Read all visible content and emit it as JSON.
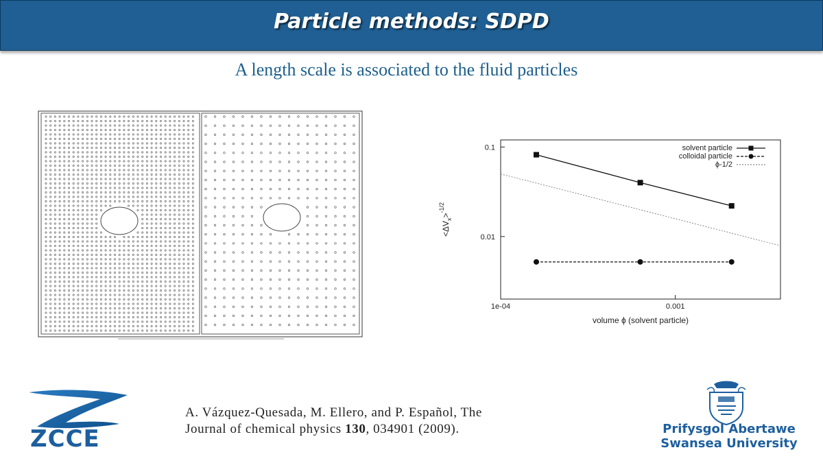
{
  "slide": {
    "title": "Particle methods: SDPD",
    "subtitle": "A length scale is associated to the fluid particles"
  },
  "reference": {
    "line1": "A. Vázquez-Quesada, M. Ellero, and P. Español, The",
    "line2_prefix": "Journal of chemical physics ",
    "line2_volume": "130",
    "line2_suffix": ", 034901 (2009)."
  },
  "logos": {
    "zcce": "ZCCE",
    "university_line1": "Prifysgol Abertawe",
    "university_line2": "Swansea University"
  },
  "colors": {
    "title_bar": "#1f5f93",
    "subtitle": "#1c5f8c",
    "logo_blue": "#1d5f9e"
  },
  "chart_data": {
    "type": "line",
    "title": "",
    "xlabel": "volume ϕ (solvent particle)",
    "ylabel": "<ΔVx>-1/2",
    "x_scale": "log",
    "y_scale": "log",
    "xlim": [
      0.0001,
      0.004
    ],
    "ylim": [
      0.002,
      0.12
    ],
    "x_ticks": [
      {
        "value": 0.0001,
        "label": "1e-04"
      },
      {
        "value": 0.001,
        "label": "0.001"
      }
    ],
    "y_ticks": [
      {
        "value": 0.01,
        "label": "0.01"
      },
      {
        "value": 0.1,
        "label": "0.1"
      }
    ],
    "legend_position": "top-right",
    "grid": false,
    "series": [
      {
        "name": "solvent particle",
        "style": "solid",
        "marker": "square",
        "x": [
          0.00016,
          0.00063,
          0.0021
        ],
        "y": [
          0.082,
          0.04,
          0.022
        ]
      },
      {
        "name": "colloidal particle",
        "style": "dashed",
        "marker": "circle",
        "x": [
          0.00016,
          0.00063,
          0.0021
        ],
        "y": [
          0.0052,
          0.0052,
          0.0052
        ]
      },
      {
        "name": "ϕ-1/2",
        "style": "dotted",
        "marker": "none",
        "x": [
          0.0001,
          0.004
        ],
        "y": [
          0.05,
          0.0079
        ]
      }
    ]
  }
}
